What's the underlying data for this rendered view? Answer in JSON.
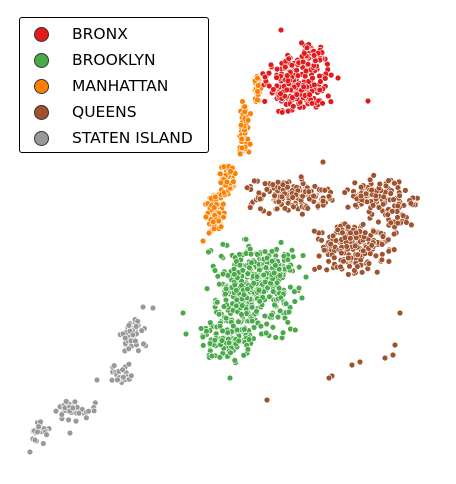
{
  "chart_data": {
    "type": "scatter",
    "title": "",
    "xlabel": "",
    "ylabel": "",
    "axes_visible": false,
    "grid": false,
    "legend_placement": "top-left",
    "point_style": {
      "edge_color": "#ffffff"
    },
    "series": [
      {
        "name": "BRONX",
        "color": "#e31a1c",
        "clusters": [
          {
            "center": [
              297,
              84
            ],
            "spread": [
              32,
              30
            ],
            "count": 230
          },
          {
            "center": [
              310,
              55
            ],
            "spread": [
              14,
              14
            ],
            "count": 40
          }
        ],
        "points": [
          [
            281,
            30
          ],
          [
            368,
            101
          ],
          [
            265,
            77
          ],
          [
            338,
            78
          ]
        ]
      },
      {
        "name": "BROOKLYN",
        "color": "#4aaa4a",
        "clusters": [
          {
            "center": [
              253,
              290
            ],
            "spread": [
              42,
              48
            ],
            "count": 360
          },
          {
            "center": [
              228,
              340
            ],
            "spread": [
              26,
              24
            ],
            "count": 110
          },
          {
            "center": [
              275,
              270
            ],
            "spread": [
              28,
              20
            ],
            "count": 70
          }
        ],
        "points": [
          [
            183,
            313
          ],
          [
            186,
            334
          ],
          [
            302,
            298
          ],
          [
            306,
            277
          ],
          [
            230,
            378
          ],
          [
            212,
            356
          ]
        ]
      },
      {
        "name": "MANHATTAN",
        "color": "#ff8000",
        "clusters": [
          {
            "center": [
              215,
              213
            ],
            "spread": [
              9,
              18
            ],
            "count": 110
          },
          {
            "center": [
              228,
              180
            ],
            "spread": [
              8,
              14
            ],
            "count": 80
          },
          {
            "center": [
              244,
              130
            ],
            "spread": [
              6,
              26
            ],
            "count": 70
          },
          {
            "center": [
              258,
              90
            ],
            "spread": [
              4,
              14
            ],
            "count": 30
          }
        ],
        "points": [
          [
            266,
            77
          ],
          [
            203,
            241
          ],
          [
            209,
            233
          ]
        ]
      },
      {
        "name": "QUEENS",
        "color": "#a0522d",
        "clusters": [
          {
            "center": [
              355,
              245
            ],
            "spread": [
              38,
              28
            ],
            "count": 200
          },
          {
            "center": [
              290,
              195
            ],
            "spread": [
              40,
              18
            ],
            "count": 160
          },
          {
            "center": [
              375,
              195
            ],
            "spread": [
              30,
              18
            ],
            "count": 90
          },
          {
            "center": [
              400,
              210
            ],
            "spread": [
              16,
              22
            ],
            "count": 40
          }
        ],
        "points": [
          [
            395,
            345
          ],
          [
            393,
            355
          ],
          [
            385,
            358
          ],
          [
            360,
            362
          ],
          [
            352,
            365
          ],
          [
            332,
            376
          ],
          [
            329,
            378
          ],
          [
            267,
            400
          ],
          [
            400,
            313
          ],
          [
            323,
            162
          ]
        ]
      },
      {
        "name": "STATEN ISLAND",
        "color": "#999999",
        "clusters": [
          {
            "center": [
              133,
              335
            ],
            "spread": [
              14,
              16
            ],
            "count": 45
          },
          {
            "center": [
              120,
              375
            ],
            "spread": [
              12,
              12
            ],
            "count": 25
          },
          {
            "center": [
              75,
              410
            ],
            "spread": [
              20,
              12
            ],
            "count": 40
          },
          {
            "center": [
              40,
              430
            ],
            "spread": [
              10,
              14
            ],
            "count": 20
          }
        ],
        "points": [
          [
            30,
            452
          ],
          [
            35,
            440
          ],
          [
            143,
            307
          ],
          [
            153,
            308
          ],
          [
            97,
            380
          ],
          [
            70,
            433
          ]
        ]
      }
    ]
  }
}
